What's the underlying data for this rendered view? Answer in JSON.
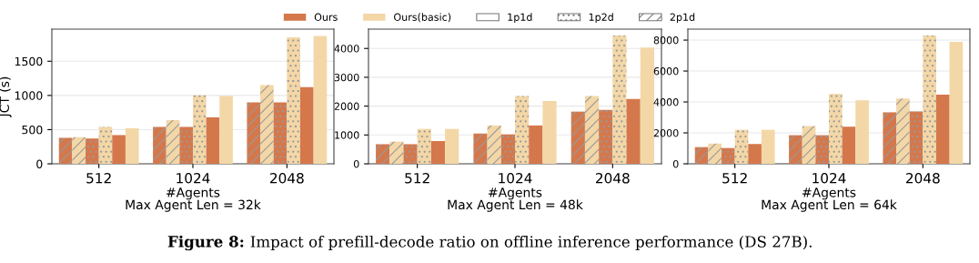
{
  "chart_data": [
    {
      "type": "bar",
      "categories": [
        "512",
        "1024",
        "2048"
      ],
      "xlabel": "#Agents\nMax Agent Len = 32k",
      "ylabel": "JCT (s)",
      "ylim": [
        0,
        1970
      ],
      "yticks": [
        0,
        500,
        1000,
        1500
      ],
      "grid": "y",
      "legend": "top",
      "annotations": [
        "Figure 8:",
        "Impact of prefill-decode ratio on offline inference performance (DS 27B).",
        "1p1d",
        "1p2d",
        "2p1d"
      ],
      "series": [
        {
          "color": "#d4784c",
          "line_style": "dashed",
          "values": [
            380,
            540,
            900
          ]
        },
        {
          "color": "#f3d7a7",
          "line_style": "dashed",
          "values": [
            390,
            640,
            1150
          ]
        },
        {
          "color": "#d4784c",
          "line_style": "dotted",
          "values": [
            370,
            540,
            900
          ]
        },
        {
          "color": "#f3d7a7",
          "line_style": "dotted",
          "values": [
            540,
            1000,
            1850
          ]
        },
        {
          "name": "Ours",
          "color": "#d4784c",
          "line_style": "solid",
          "values": [
            420,
            680,
            1120
          ]
        },
        {
          "name": "Ours(basic)",
          "color": "#f3d7a7",
          "line_style": "solid",
          "values": [
            520,
            990,
            1870
          ]
        }
      ]
    },
    {
      "type": "bar",
      "categories": [
        "512",
        "1024",
        "2048"
      ],
      "xlabel": "#Agents\nMax Agent Len = 48k",
      "ylim": [
        0,
        4670
      ],
      "yticks": [
        0,
        1000,
        2000,
        3000,
        4000
      ],
      "grid": "y",
      "series": [
        {
          "color": "#d4784c",
          "line_style": "dashed",
          "values": [
            680,
            1050,
            1810
          ]
        },
        {
          "color": "#f3d7a7",
          "line_style": "dashed",
          "values": [
            770,
            1330,
            2350
          ]
        },
        {
          "color": "#d4784c",
          "line_style": "dotted",
          "values": [
            680,
            1020,
            1870
          ]
        },
        {
          "color": "#f3d7a7",
          "line_style": "dotted",
          "values": [
            1210,
            2350,
            4450
          ]
        },
        {
          "color": "#d4784c",
          "line_style": "solid",
          "values": [
            790,
            1330,
            2250
          ]
        },
        {
          "color": "#f3d7a7",
          "line_style": "solid",
          "values": [
            1210,
            2180,
            4030
          ]
        }
      ]
    },
    {
      "type": "bar",
      "categories": [
        "512",
        "1024",
        "2048"
      ],
      "xlabel": "#Agents\nMax Agent Len = 64k",
      "ylim": [
        0,
        8710
      ],
      "yticks": [
        0,
        2000,
        4000,
        6000,
        8000
      ],
      "grid": "y",
      "series": [
        {
          "color": "#d4784c",
          "line_style": "dashed",
          "values": [
            1080,
            1850,
            3330
          ]
        },
        {
          "color": "#f3d7a7",
          "line_style": "dashed",
          "values": [
            1310,
            2440,
            4220
          ]
        },
        {
          "color": "#d4784c",
          "line_style": "dotted",
          "values": [
            1020,
            1850,
            3390
          ]
        },
        {
          "color": "#f3d7a7",
          "line_style": "dotted",
          "values": [
            2200,
            4510,
            8300
          ]
        },
        {
          "color": "#d4784c",
          "line_style": "solid",
          "values": [
            1280,
            2400,
            4470
          ]
        },
        {
          "color": "#f3d7a7",
          "line_style": "solid",
          "values": [
            2200,
            4100,
            7880
          ]
        }
      ]
    }
  ]
}
